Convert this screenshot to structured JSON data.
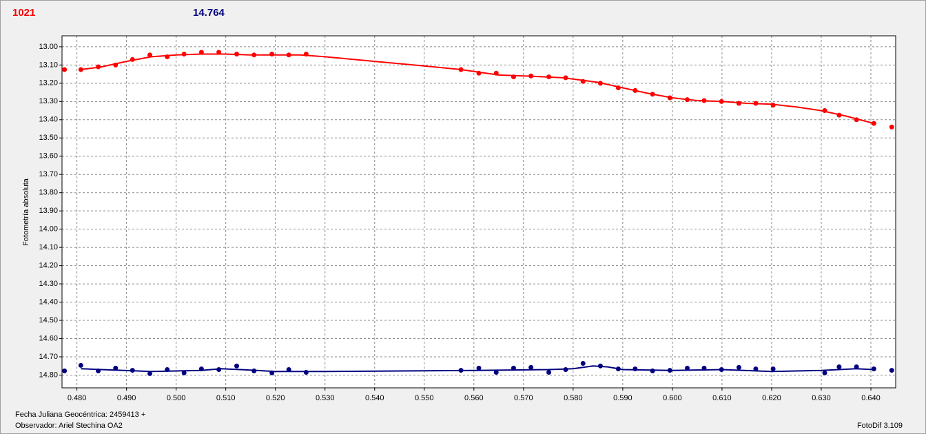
{
  "header": {
    "left_value": "1021",
    "right_value": "14.764"
  },
  "chart_data": {
    "type": "scatter-fit",
    "y_label": "Fotometría absoluta",
    "xlim": [
      0.477,
      0.645
    ],
    "xticks": [
      {
        "value": 0.48,
        "label": "0.480"
      },
      {
        "value": 0.49,
        "label": "0.490"
      },
      {
        "value": 0.5,
        "label": "0.500"
      },
      {
        "value": 0.51,
        "label": "0.510"
      },
      {
        "value": 0.52,
        "label": "0.520"
      },
      {
        "value": 0.53,
        "label": "0.530"
      },
      {
        "value": 0.54,
        "label": "0.540"
      },
      {
        "value": 0.55,
        "label": "0.550"
      },
      {
        "value": 0.56,
        "label": "0.560"
      },
      {
        "value": 0.57,
        "label": "0.570"
      },
      {
        "value": 0.58,
        "label": "0.580"
      },
      {
        "value": 0.59,
        "label": "0.590"
      },
      {
        "value": 0.6,
        "label": "0.600"
      },
      {
        "value": 0.61,
        "label": "0.610"
      },
      {
        "value": 0.62,
        "label": "0.620"
      },
      {
        "value": 0.63,
        "label": "0.630"
      },
      {
        "value": 0.64,
        "label": "0.640"
      }
    ],
    "ylim": [
      12.94,
      14.87
    ],
    "y_inverted": true,
    "yticks": [
      {
        "value": 13.0,
        "label": "13.00"
      },
      {
        "value": 13.1,
        "label": "13.10"
      },
      {
        "value": 13.2,
        "label": "13.20"
      },
      {
        "value": 13.3,
        "label": "13.30"
      },
      {
        "value": 13.4,
        "label": "13.40"
      },
      {
        "value": 13.5,
        "label": "13.50"
      },
      {
        "value": 13.6,
        "label": "13.60"
      },
      {
        "value": 13.7,
        "label": "13.70"
      },
      {
        "value": 13.8,
        "label": "13.80"
      },
      {
        "value": 13.9,
        "label": "13.90"
      },
      {
        "value": 14.0,
        "label": "14.00"
      },
      {
        "value": 14.1,
        "label": "14.10"
      },
      {
        "value": 14.2,
        "label": "14.20"
      },
      {
        "value": 14.3,
        "label": "14.30"
      },
      {
        "value": 14.4,
        "label": "14.40"
      },
      {
        "value": 14.5,
        "label": "14.50"
      },
      {
        "value": 14.6,
        "label": "14.60"
      },
      {
        "value": 14.7,
        "label": "14.70"
      },
      {
        "value": 14.8,
        "label": "14.80"
      }
    ],
    "grid": true,
    "series": [
      {
        "color": "#ff0000",
        "x": [
          0.4775,
          0.4808,
          0.4843,
          0.4878,
          0.4912,
          0.4947,
          0.4982,
          0.5016,
          0.5051,
          0.5086,
          0.5122,
          0.5157,
          0.5193,
          0.5227,
          0.5262,
          0.5574,
          0.561,
          0.5645,
          0.568,
          0.5715,
          0.5751,
          0.5785,
          0.582,
          0.5855,
          0.5891,
          0.5925,
          0.596,
          0.5995,
          0.603,
          0.6064,
          0.6099,
          0.6134,
          0.6168,
          0.6203,
          0.6307,
          0.6336,
          0.6371,
          0.6406,
          0.6442
        ],
        "values": [
          13.125,
          13.125,
          13.11,
          13.1,
          13.07,
          13.045,
          13.055,
          13.04,
          13.03,
          13.03,
          13.04,
          13.045,
          13.04,
          13.045,
          13.04,
          13.125,
          13.145,
          13.145,
          13.165,
          13.16,
          13.165,
          13.17,
          13.19,
          13.2,
          13.225,
          13.24,
          13.26,
          13.28,
          13.29,
          13.295,
          13.3,
          13.31,
          13.31,
          13.32,
          13.35,
          13.375,
          13.4,
          13.42,
          13.44
        ],
        "fit_x": [
          0.4808,
          0.485,
          0.49,
          0.495,
          0.5,
          0.505,
          0.51,
          0.515,
          0.52,
          0.525,
          0.53,
          0.54,
          0.55,
          0.5574,
          0.565,
          0.57,
          0.578,
          0.585,
          0.59,
          0.595,
          0.6,
          0.605,
          0.61,
          0.615,
          0.62,
          0.625,
          0.63,
          0.635,
          0.6406
        ],
        "fit_values": [
          13.125,
          13.11,
          13.08,
          13.055,
          13.045,
          13.04,
          13.04,
          13.045,
          13.045,
          13.045,
          13.055,
          13.08,
          13.105,
          13.125,
          13.155,
          13.16,
          13.17,
          13.195,
          13.225,
          13.255,
          13.28,
          13.295,
          13.3,
          13.31,
          13.315,
          13.33,
          13.35,
          13.38,
          13.42
        ]
      },
      {
        "color": "#000080",
        "x": [
          0.4775,
          0.4808,
          0.4843,
          0.4878,
          0.4912,
          0.4947,
          0.4982,
          0.5016,
          0.5051,
          0.5086,
          0.5122,
          0.5157,
          0.5193,
          0.5227,
          0.5262,
          0.5574,
          0.561,
          0.5645,
          0.568,
          0.5715,
          0.5751,
          0.5785,
          0.582,
          0.5855,
          0.5891,
          0.5925,
          0.596,
          0.5995,
          0.603,
          0.6064,
          0.6099,
          0.6134,
          0.6168,
          0.6203,
          0.6307,
          0.6336,
          0.6371,
          0.6406,
          0.6442
        ],
        "values": [
          14.777,
          14.747,
          14.777,
          14.762,
          14.774,
          14.792,
          14.77,
          14.788,
          14.766,
          14.77,
          14.75,
          14.777,
          14.788,
          14.77,
          14.785,
          14.774,
          14.762,
          14.785,
          14.762,
          14.758,
          14.785,
          14.77,
          14.736,
          14.75,
          14.766,
          14.766,
          14.777,
          14.774,
          14.762,
          14.762,
          14.77,
          14.758,
          14.766,
          14.766,
          14.788,
          14.755,
          14.755,
          14.766,
          14.774
        ],
        "fit_x": [
          0.4808,
          0.485,
          0.495,
          0.505,
          0.509,
          0.513,
          0.52,
          0.53,
          0.56,
          0.575,
          0.58,
          0.584,
          0.587,
          0.59,
          0.6,
          0.61,
          0.62,
          0.63,
          0.637,
          0.6406
        ],
        "fit_values": [
          14.765,
          14.77,
          14.78,
          14.775,
          14.765,
          14.77,
          14.78,
          14.78,
          14.775,
          14.77,
          14.765,
          14.75,
          14.755,
          14.77,
          14.775,
          14.77,
          14.78,
          14.775,
          14.765,
          14.77
        ]
      }
    ]
  },
  "footer": {
    "date_line": "Fecha Juliana Geocéntrica: 2459413 +",
    "observer_line": "Observador: Ariel Stechina OA2",
    "software": "FotoDif 3.109"
  }
}
